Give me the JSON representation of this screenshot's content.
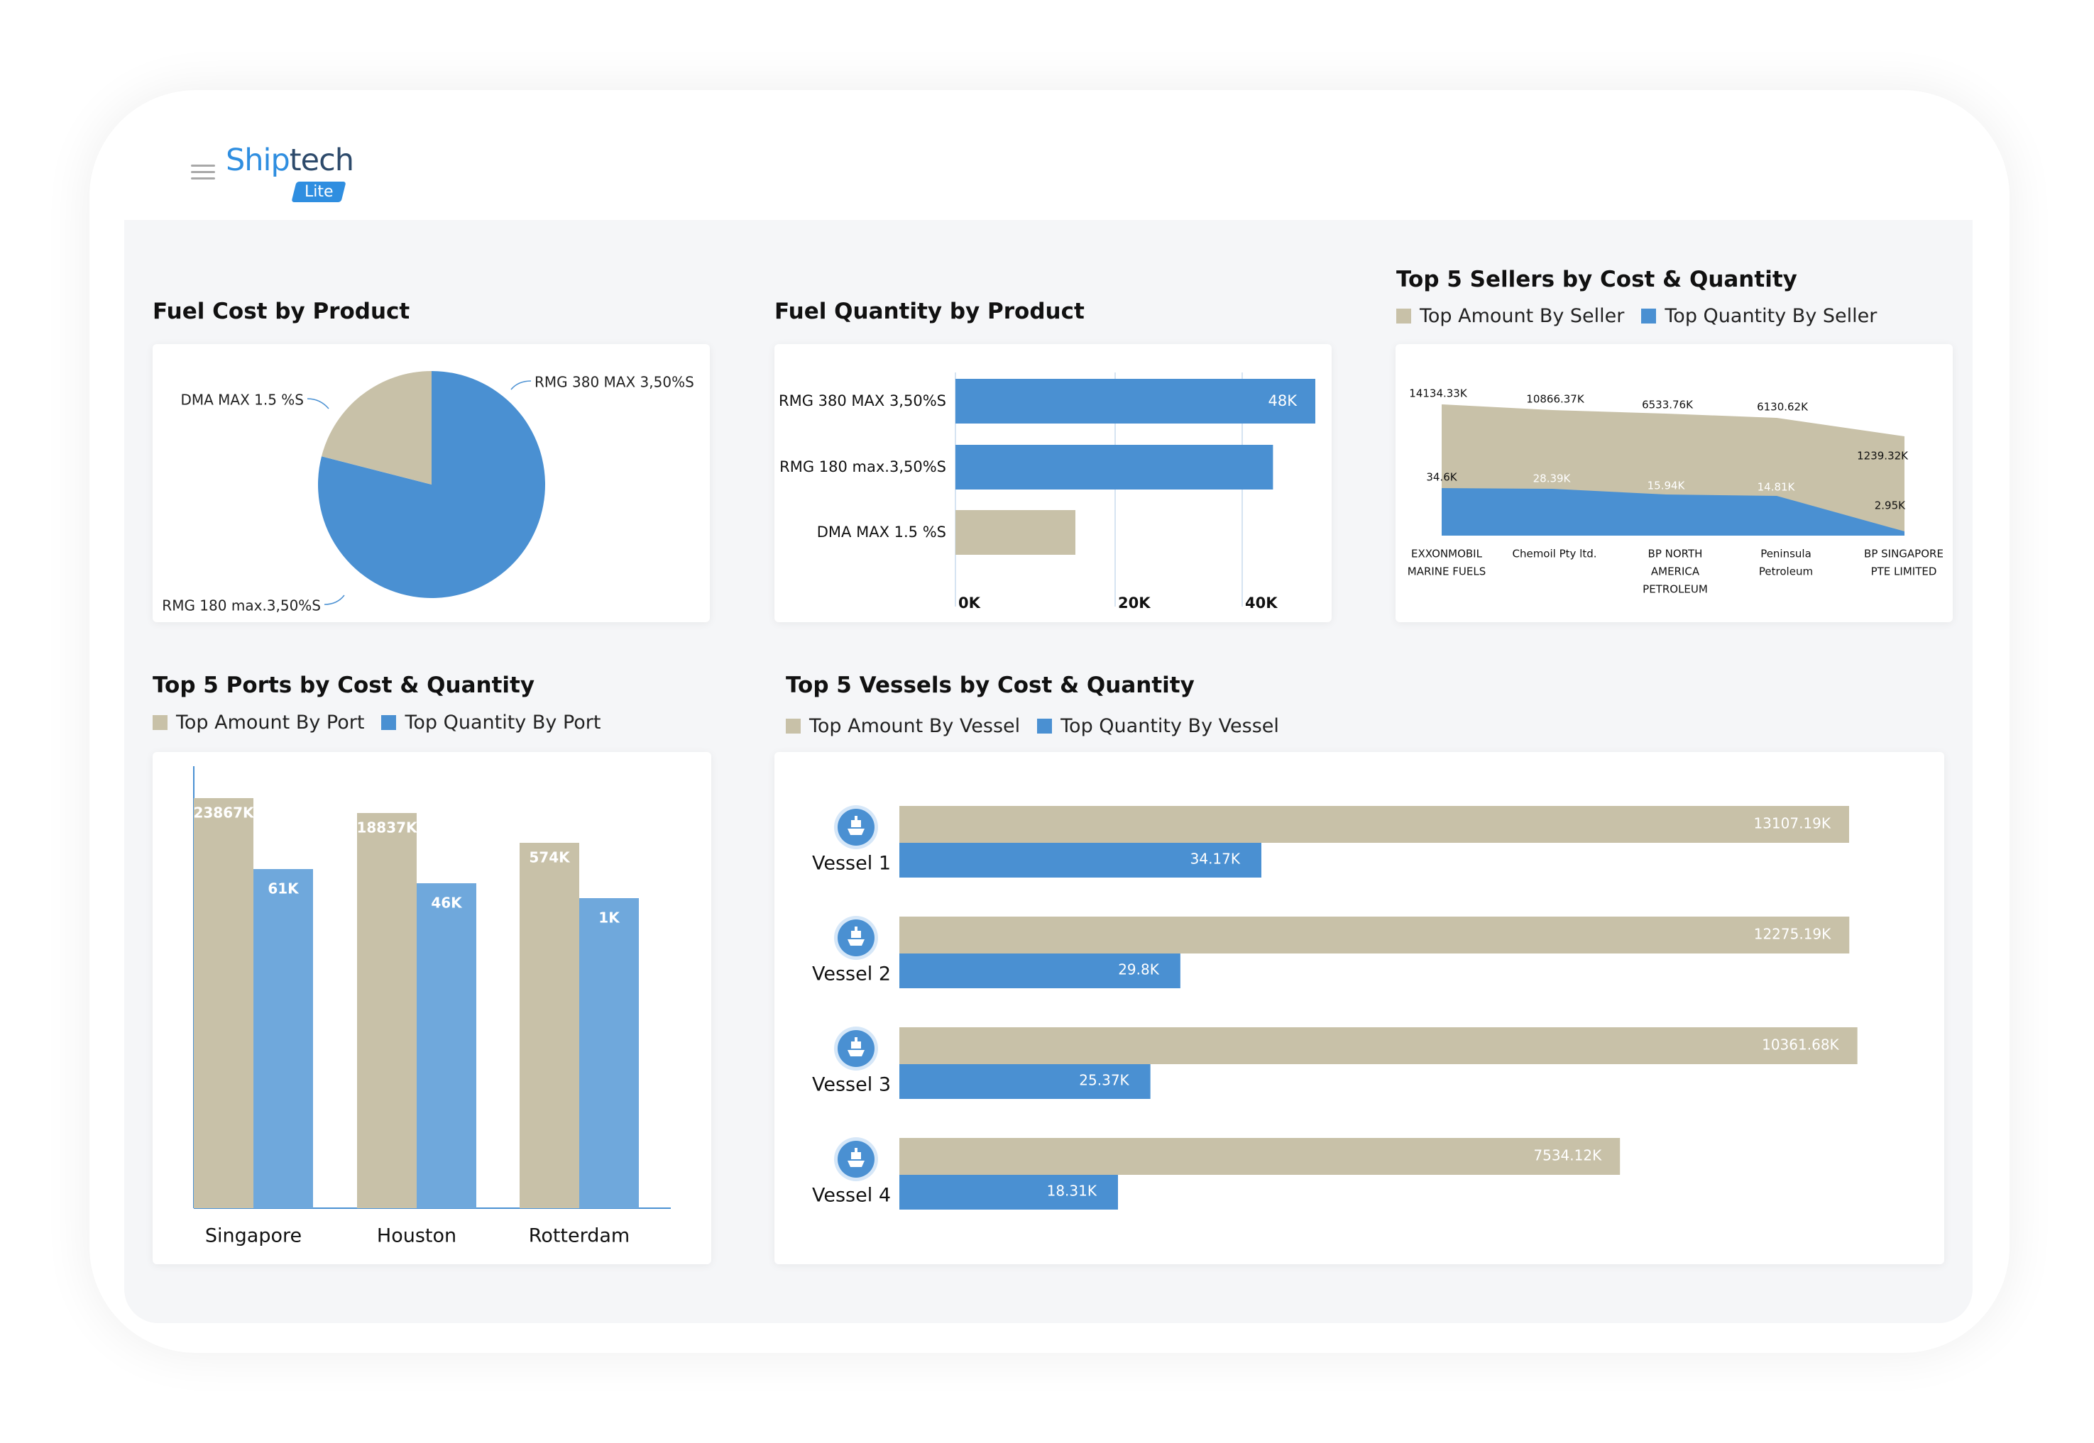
{
  "app": {
    "logo_main": "Ship",
    "logo_accent": "tech",
    "logo_badge": "Lite"
  },
  "colors": {
    "amount": "#c8c1a8",
    "quantity": "#4a90d2",
    "quantity_light": "#6fa8dc"
  },
  "fuel_cost": {
    "title": "Fuel Cost by Product",
    "chart_data": {
      "type": "pie",
      "slices": [
        {
          "label": "RMG 380 MAX 3,50%S",
          "value": 0
        },
        {
          "label": "RMG 180 max.3,50%S",
          "value": 79
        },
        {
          "label": "DMA MAX 1.5 %S",
          "value": 21
        }
      ]
    }
  },
  "fuel_quantity": {
    "title": "Fuel Quantity by Product",
    "chart_data": {
      "type": "bar",
      "orientation": "horizontal",
      "categories": [
        "RMG 380 MAX 3,50%S",
        "RMG 180 max.3,50%S",
        "DMA MAX 1.5 %S"
      ],
      "values": [
        48000,
        43000,
        16000
      ],
      "value_labels": [
        "48K",
        "",
        ""
      ],
      "xlim": [
        0,
        48000
      ],
      "xticks": [
        "0K",
        "20K",
        "40K"
      ]
    }
  },
  "sellers": {
    "title": "Top 5 Sellers by Cost & Quantity",
    "legend_amount": "Top Amount By Seller",
    "legend_quantity": "Top Quantity By Seller",
    "chart_data": {
      "type": "area",
      "categories": [
        "EXXONMOBIL MARINE FUELS",
        "Chemoil Pty ltd.",
        "BP NORTH AMERICA PETROLEUM",
        "Peninsula Petroleum",
        "BP SINGAPORE PTE LIMITED"
      ],
      "category_lines": [
        [
          "EXXONMOBIL",
          "MARINE FUELS"
        ],
        [
          "Chemoil Pty ltd."
        ],
        [
          "BP NORTH",
          "AMERICA",
          "PETROLEUM"
        ],
        [
          "Peninsula",
          "Petroleum"
        ],
        [
          "BP SINGAPORE",
          "PTE LIMITED"
        ]
      ],
      "series": [
        {
          "name": "Top Amount By Seller",
          "values": [
            14134.33,
            10866.37,
            6533.76,
            6130.62,
            1239.32
          ],
          "labels": [
            "14134.33K",
            "10866.37K",
            "6533.76K",
            "6130.62K",
            "1239.32K"
          ]
        },
        {
          "name": "Top Quantity By Seller",
          "values": [
            34.6,
            28.39,
            15.94,
            14.81,
            2.95
          ],
          "labels": [
            "34.6K",
            "28.39K",
            "15.94K",
            "14.81K",
            "2.95K"
          ]
        }
      ]
    }
  },
  "ports": {
    "title": "Top 5 Ports by Cost & Quantity",
    "legend_amount": "Top Amount By Port",
    "legend_quantity": "Top Quantity By Port",
    "chart_data": {
      "type": "bar",
      "categories": [
        "Singapore",
        "Houston",
        "Rotterdam"
      ],
      "series": [
        {
          "name": "Top Amount By Port",
          "values": [
            23867,
            18837,
            574
          ],
          "labels": [
            "23867K",
            "18837K",
            "574K"
          ]
        },
        {
          "name": "Top Quantity By Port",
          "values": [
            61,
            46,
            1
          ],
          "labels": [
            "61K",
            "46K",
            "1K"
          ]
        }
      ]
    }
  },
  "vessels": {
    "title": "Top 5 Vessels by Cost & Quantity",
    "legend_amount": "Top Amount By Vessel",
    "legend_quantity": "Top Quantity By Vessel",
    "chart_data": {
      "type": "bar",
      "orientation": "horizontal",
      "categories": [
        "Vessel 1",
        "Vessel 2",
        "Vessel 3",
        "Vessel 4"
      ],
      "series": [
        {
          "name": "Top Amount By Vessel",
          "values": [
            13107.19,
            12275.19,
            10361.68,
            7534.12
          ],
          "labels": [
            "13107.19K",
            "12275.19K",
            "10361.68K",
            "7534.12K"
          ]
        },
        {
          "name": "Top Quantity By Vessel",
          "values": [
            34.17,
            29.8,
            25.37,
            18.31
          ],
          "labels": [
            "34.17K",
            "29.8K",
            "25.37K",
            "18.31K"
          ]
        }
      ]
    }
  }
}
